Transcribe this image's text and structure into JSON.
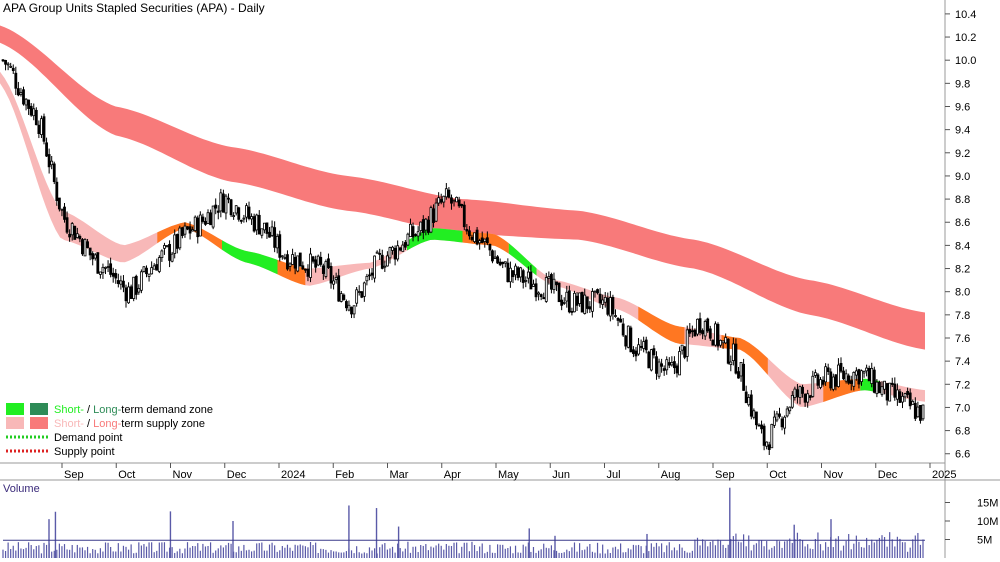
{
  "chart_data": {
    "type": "candlestick",
    "title": "APA Group Units Stapled Securities (APA) - Daily",
    "colors": {
      "price": "#000000",
      "long_supply": "#f87a7a",
      "short_supply": "#f8b8b8",
      "short_demand": "#22ee22",
      "long_demand": "#2e8b57",
      "overlap": "#ff7722",
      "demand_point": "#22cc22",
      "supply_point": "#dd2222",
      "volume": "#5a5aa8"
    },
    "x_ticks": [
      "Sep",
      "Oct",
      "Nov",
      "Dec",
      "2024",
      "Feb",
      "Mar",
      "Apr",
      "May",
      "Jun",
      "Jul",
      "Aug",
      "Sep",
      "Oct",
      "Nov",
      "Dec",
      "2025"
    ],
    "y_ticks": [
      "10.4",
      "10.2",
      "10.0",
      "9.8",
      "9.6",
      "9.4",
      "9.2",
      "9.0",
      "8.8",
      "8.6",
      "8.4",
      "8.2",
      "8.0",
      "7.8",
      "7.6",
      "7.4",
      "7.2",
      "7.0",
      "6.8",
      "6.6"
    ],
    "ylim": [
      6.52,
      10.52
    ],
    "month_index": [
      0,
      1,
      2,
      3,
      4,
      5,
      6,
      7,
      8,
      9,
      10,
      11,
      12,
      13,
      14,
      15,
      16,
      17
    ],
    "price_path": [
      10.0,
      9.55,
      8.6,
      8.25,
      8.0,
      8.3,
      8.55,
      8.8,
      8.6,
      8.3,
      8.2,
      7.9,
      8.3,
      8.5,
      8.8,
      8.45,
      8.15,
      8.05,
      7.9,
      7.9,
      7.5,
      7.3,
      7.75,
      7.45,
      6.7,
      7.1,
      7.25,
      7.3,
      7.1,
      6.95
    ],
    "long_zone_upper": [
      10.3,
      9.6,
      9.25,
      9.0,
      8.8,
      8.7,
      8.45,
      8.1,
      7.82
    ],
    "long_zone_lower": [
      10.15,
      9.35,
      8.95,
      8.7,
      8.5,
      8.45,
      8.2,
      7.8,
      7.5
    ],
    "short_zone_upper": [
      9.9,
      8.7,
      8.4,
      8.6,
      8.35,
      8.2,
      8.25,
      8.55,
      8.5,
      8.1,
      7.95,
      7.7,
      7.6,
      7.2,
      7.25,
      7.15
    ],
    "short_zone_lower": [
      9.8,
      8.45,
      8.25,
      8.55,
      8.25,
      8.05,
      8.2,
      8.45,
      8.4,
      8.05,
      7.85,
      7.55,
      7.5,
      7.0,
      7.15,
      7.05
    ],
    "volume_label": "Volume",
    "volume_ticks": [
      "15M",
      "10M",
      "5M"
    ],
    "volume_ylim": [
      0,
      20
    ],
    "volume_ma": 4.8,
    "volume_spikes": [
      {
        "x": 0.05,
        "v": 10.5
      },
      {
        "x": 0.057,
        "v": 12.5
      },
      {
        "x": 0.182,
        "v": 12.6
      },
      {
        "x": 0.25,
        "v": 10.0
      },
      {
        "x": 0.376,
        "v": 14.2
      },
      {
        "x": 0.406,
        "v": 13.5
      },
      {
        "x": 0.43,
        "v": 8.5
      },
      {
        "x": 0.572,
        "v": 8.0
      },
      {
        "x": 0.6,
        "v": 6.0
      },
      {
        "x": 0.7,
        "v": 6.5
      },
      {
        "x": 0.79,
        "v": 19.0
      },
      {
        "x": 0.86,
        "v": 9.0
      },
      {
        "x": 0.9,
        "v": 10.5
      }
    ],
    "legend": [
      {
        "kind": "demand_zone",
        "short": "Short-",
        "sep": " / ",
        "long": "Long-",
        "rest": "term demand zone"
      },
      {
        "kind": "supply_zone",
        "short": "Short-",
        "sep": " / ",
        "long": "Long-",
        "rest": "term supply zone"
      },
      {
        "kind": "demand_point",
        "label": "Demand point"
      },
      {
        "kind": "supply_point",
        "label": "Supply point"
      }
    ]
  }
}
